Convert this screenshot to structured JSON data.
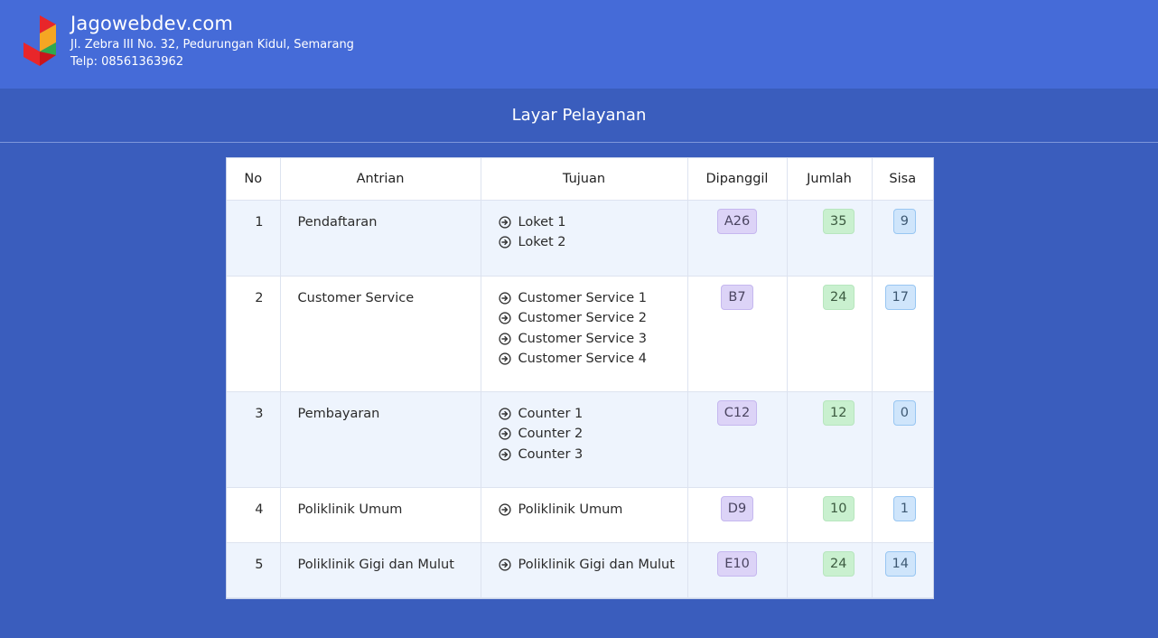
{
  "header": {
    "brand_name": "Jagowebdev.com",
    "address": "Jl. Zebra III No. 32, Pedurungan Kidul, Semarang",
    "phone": "Telp: 08561363962"
  },
  "page_title": "Layar Pelayanan",
  "table": {
    "columns": [
      "No",
      "Antrian",
      "Tujuan",
      "Dipanggil",
      "Jumlah",
      "Sisa"
    ],
    "rows": [
      {
        "no": "1",
        "antrian": "Pendaftaran",
        "tujuan": [
          "Loket 1",
          "Loket 2"
        ],
        "dipanggil": "A26",
        "jumlah": "35",
        "sisa": "9"
      },
      {
        "no": "2",
        "antrian": "Customer Service",
        "tujuan": [
          "Customer Service 1",
          "Customer Service 2",
          "Customer Service 3",
          "Customer Service 4"
        ],
        "dipanggil": "B7",
        "jumlah": "24",
        "sisa": "17"
      },
      {
        "no": "3",
        "antrian": "Pembayaran",
        "tujuan": [
          "Counter 1",
          "Counter 2",
          "Counter 3"
        ],
        "dipanggil": "C12",
        "jumlah": "12",
        "sisa": "0"
      },
      {
        "no": "4",
        "antrian": "Poliklinik Umum",
        "tujuan": [
          "Poliklinik Umum"
        ],
        "dipanggil": "D9",
        "jumlah": "10",
        "sisa": "1"
      },
      {
        "no": "5",
        "antrian": "Poliklinik Gigi dan Mulut",
        "tujuan": [
          "Poliklinik Gigi dan Mulut"
        ],
        "dipanggil": "E10",
        "jumlah": "24",
        "sisa": "14"
      }
    ]
  },
  "colors": {
    "header_bg": "#456bd8",
    "page_bg": "#3a5dbd",
    "badge_called": "#dcd3f7",
    "badge_total": "#c9f0cf",
    "badge_remaining": "#cfe5fb"
  },
  "icons": {
    "logo": "jagowebdev-logo",
    "destination": "arrow-circle-right-icon"
  }
}
